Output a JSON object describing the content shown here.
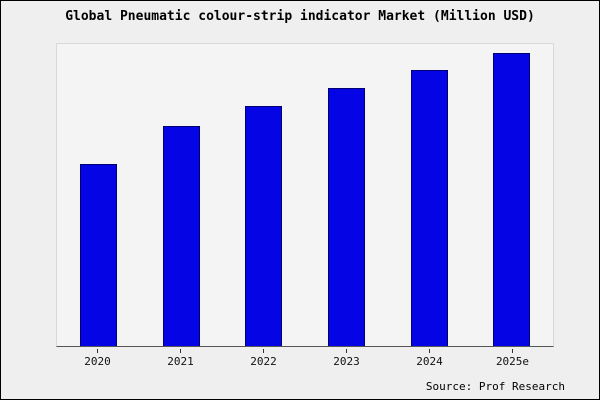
{
  "title": "Global Pneumatic colour-strip indicator Market (Million USD)",
  "source": "Source: Prof Research",
  "colors": {
    "bar_fill": "#0404e4",
    "bar_border": "#000070",
    "frame_background": "#efefef",
    "plot_background": "#f4f4f4",
    "axis": "#555555"
  },
  "chart_data": {
    "type": "bar",
    "title": "Global Pneumatic colour-strip indicator Market (Million USD)",
    "categories": [
      "2020",
      "2021",
      "2022",
      "2023",
      "2024",
      "2025e"
    ],
    "values": [
      62,
      75,
      82,
      88,
      94,
      100
    ],
    "xlabel": "",
    "ylabel": "",
    "ylim": [
      0,
      103
    ],
    "grid": false,
    "legend": false,
    "annotations": [
      "Source: Prof Research"
    ]
  }
}
